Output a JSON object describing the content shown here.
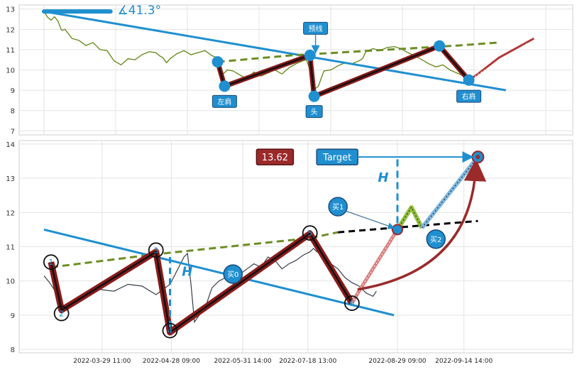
{
  "chart_data": [
    {
      "type": "line",
      "title": "",
      "xlabel": "",
      "ylabel": "",
      "ylim": [
        6.8,
        13.2
      ],
      "y_ticks": [
        "7",
        "8",
        "9",
        "10",
        "11",
        "12",
        "13"
      ],
      "grid": true,
      "angle_label": "∡41.3°",
      "colors": {
        "price": "#6b8e23",
        "trend": "#1f8fd0",
        "neckline": "#6b8e23",
        "pattern": "#8b1a1a",
        "marker": "#1f8fd0",
        "projection": "#b23a3a"
      },
      "price_points": [
        [
          0,
          12.88
        ],
        [
          5,
          12.6
        ],
        [
          10,
          12.45
        ],
        [
          15,
          12.62
        ],
        [
          20,
          12.4
        ],
        [
          25,
          11.95
        ],
        [
          30,
          12.0
        ],
        [
          40,
          11.55
        ],
        [
          50,
          11.45
        ],
        [
          60,
          11.2
        ],
        [
          70,
          11.35
        ],
        [
          80,
          11.0
        ],
        [
          90,
          10.95
        ],
        [
          100,
          10.45
        ],
        [
          110,
          10.25
        ],
        [
          120,
          10.55
        ],
        [
          130,
          10.5
        ],
        [
          140,
          10.75
        ],
        [
          150,
          10.9
        ],
        [
          160,
          10.85
        ],
        [
          165,
          10.7
        ],
        [
          170,
          10.6
        ],
        [
          175,
          10.35
        ],
        [
          180,
          10.55
        ],
        [
          190,
          10.8
        ],
        [
          200,
          10.95
        ],
        [
          210,
          10.75
        ],
        [
          220,
          10.85
        ],
        [
          230,
          10.95
        ],
        [
          240,
          10.7
        ],
        [
          248,
          10.6
        ],
        [
          252,
          10.2
        ],
        [
          256,
          9.8
        ],
        [
          262,
          10.0
        ],
        [
          270,
          9.95
        ],
        [
          280,
          9.75
        ],
        [
          290,
          9.55
        ],
        [
          300,
          9.9
        ],
        [
          310,
          9.7
        ],
        [
          320,
          9.85
        ],
        [
          330,
          10.0
        ],
        [
          340,
          9.8
        ],
        [
          350,
          10.1
        ],
        [
          360,
          10.3
        ],
        [
          370,
          10.45
        ],
        [
          375,
          10.5
        ],
        [
          380,
          10.0
        ],
        [
          385,
          9.0
        ],
        [
          392,
          9.2
        ],
        [
          400,
          9.95
        ],
        [
          410,
          10.0
        ],
        [
          420,
          10.2
        ],
        [
          430,
          10.35
        ],
        [
          440,
          10.3
        ],
        [
          450,
          10.45
        ],
        [
          455,
          10.55
        ],
        [
          460,
          10.9
        ],
        [
          470,
          11.05
        ],
        [
          480,
          10.95
        ],
        [
          490,
          11.1
        ],
        [
          500,
          11.15
        ],
        [
          510,
          11.05
        ],
        [
          520,
          10.85
        ],
        [
          530,
          10.7
        ],
        [
          540,
          10.5
        ],
        [
          550,
          10.3
        ],
        [
          560,
          10.15
        ],
        [
          570,
          10.25
        ],
        [
          580,
          10.0
        ],
        [
          590,
          9.85
        ],
        [
          600,
          9.7
        ]
      ],
      "trend_line": [
        [
          0,
          12.88
        ],
        [
          660,
          9.0
        ]
      ],
      "neckline": [
        [
          248,
          10.4
        ],
        [
          355,
          10.72
        ],
        [
          590,
          11.2
        ],
        [
          650,
          11.35
        ]
      ],
      "pattern_points": [
        [
          248,
          10.4
        ],
        [
          258,
          9.2
        ],
        [
          380,
          10.72
        ],
        [
          386,
          8.7
        ],
        [
          565,
          11.18
        ],
        [
          607,
          9.5
        ]
      ],
      "projection": [
        [
          607,
          9.5
        ],
        [
          620,
          9.8
        ],
        [
          650,
          10.6
        ],
        [
          700,
          11.55
        ]
      ],
      "markers": [
        {
          "x": 248,
          "y": 10.4
        },
        {
          "x": 258,
          "y": 9.2
        },
        {
          "x": 380,
          "y": 10.72
        },
        {
          "x": 386,
          "y": 8.7
        },
        {
          "x": 565,
          "y": 11.18
        },
        {
          "x": 607,
          "y": 9.5
        }
      ],
      "annotations": [
        {
          "text": "左肩",
          "x": 258,
          "y": 8.45
        },
        {
          "text": "头",
          "x": 386,
          "y": 7.95
        },
        {
          "text": "右肩",
          "x": 607,
          "y": 8.7
        },
        {
          "text": "预线",
          "x": 388,
          "y": 12.05
        }
      ]
    },
    {
      "type": "line",
      "title": "",
      "xlabel": "",
      "ylabel": "",
      "ylim": [
        7.9,
        14.1
      ],
      "y_ticks": [
        "8",
        "9",
        "10",
        "11",
        "12",
        "13",
        "14"
      ],
      "x_ticks": [
        "2022-03-29 11:00",
        "2022-04-28 09:00",
        "2022-05-31 14:00",
        "2022-07-18 13:00",
        "2022-08-29 09:00",
        "2022-09-14 14:00"
      ],
      "grid": true,
      "target_value_label": "13.62",
      "target_label": "Target",
      "h_label": "H",
      "colors": {
        "price": "#3a3f4b",
        "trend": "#1f8fd0",
        "neckline": "#6b8e23",
        "pattern": "#8b1a1a",
        "extension": "#000000",
        "target_arrow": "#1f8fd0",
        "curve": "#9b2a2a"
      },
      "price_points": [
        [
          0,
          10.15
        ],
        [
          8,
          9.95
        ],
        [
          16,
          9.7
        ],
        [
          24,
          9.3
        ],
        [
          32,
          9.2
        ],
        [
          40,
          9.35
        ],
        [
          60,
          9.6
        ],
        [
          80,
          9.75
        ],
        [
          100,
          9.7
        ],
        [
          120,
          9.9
        ],
        [
          140,
          9.85
        ],
        [
          160,
          9.6
        ],
        [
          180,
          9.9
        ],
        [
          190,
          10.3
        ],
        [
          200,
          10.7
        ],
        [
          205,
          10.8
        ],
        [
          210,
          9.9
        ],
        [
          215,
          8.8
        ],
        [
          220,
          8.95
        ],
        [
          230,
          9.2
        ],
        [
          240,
          9.8
        ],
        [
          250,
          10.0
        ],
        [
          260,
          10.1
        ],
        [
          270,
          10.4
        ],
        [
          280,
          10.2
        ],
        [
          290,
          10.35
        ],
        [
          300,
          10.5
        ],
        [
          310,
          10.4
        ],
        [
          320,
          10.7
        ],
        [
          330,
          10.6
        ],
        [
          340,
          10.35
        ],
        [
          350,
          10.5
        ],
        [
          360,
          10.6
        ],
        [
          370,
          10.75
        ],
        [
          380,
          10.85
        ],
        [
          385,
          10.95
        ],
        [
          390,
          10.85
        ],
        [
          400,
          10.75
        ],
        [
          410,
          10.5
        ],
        [
          420,
          10.35
        ],
        [
          430,
          10.1
        ],
        [
          440,
          9.95
        ],
        [
          450,
          9.85
        ],
        [
          460,
          9.65
        ],
        [
          470,
          9.55
        ],
        [
          475,
          9.7
        ]
      ],
      "trend_line": [
        [
          0,
          11.5
        ],
        [
          500,
          9.0
        ]
      ],
      "neckline": [
        [
          10,
          10.4
        ],
        [
          160,
          10.78
        ],
        [
          380,
          11.25
        ],
        [
          420,
          11.42
        ]
      ],
      "extension_line": [
        [
          420,
          11.42
        ],
        [
          620,
          11.75
        ]
      ],
      "pattern_points": [
        [
          10,
          10.55
        ],
        [
          25,
          9.15
        ],
        [
          160,
          10.85
        ],
        [
          180,
          8.5
        ],
        [
          380,
          11.38
        ],
        [
          440,
          9.35
        ]
      ],
      "labels": [
        {
          "text": "1",
          "x": 10,
          "y": 10.55
        },
        {
          "text": "2",
          "x": 25,
          "y": 9.05
        },
        {
          "text": "3",
          "x": 160,
          "y": 10.9
        },
        {
          "text": "4",
          "x": 180,
          "y": 8.55
        },
        {
          "text": "5",
          "x": 380,
          "y": 11.4
        },
        {
          "text": "6",
          "x": 440,
          "y": 9.35
        }
      ],
      "buy_points": [
        {
          "text": "买0",
          "x": 270,
          "y": 10.2
        },
        {
          "text": "买1",
          "x": 420,
          "y": 12.17
        },
        {
          "text": "买2",
          "x": 560,
          "y": 11.22
        }
      ],
      "path_up": [
        [
          440,
          9.35
        ],
        [
          450,
          9.7
        ],
        [
          505,
          11.5
        ]
      ],
      "zigzag": [
        [
          505,
          11.5
        ],
        [
          525,
          12.15
        ],
        [
          540,
          11.55
        ]
      ],
      "path_target": [
        [
          540,
          11.55
        ],
        [
          620,
          13.62
        ]
      ],
      "target_point": {
        "x": 620,
        "y": 13.62
      },
      "h_line": [
        505,
        11.5,
        13.55
      ]
    }
  ]
}
